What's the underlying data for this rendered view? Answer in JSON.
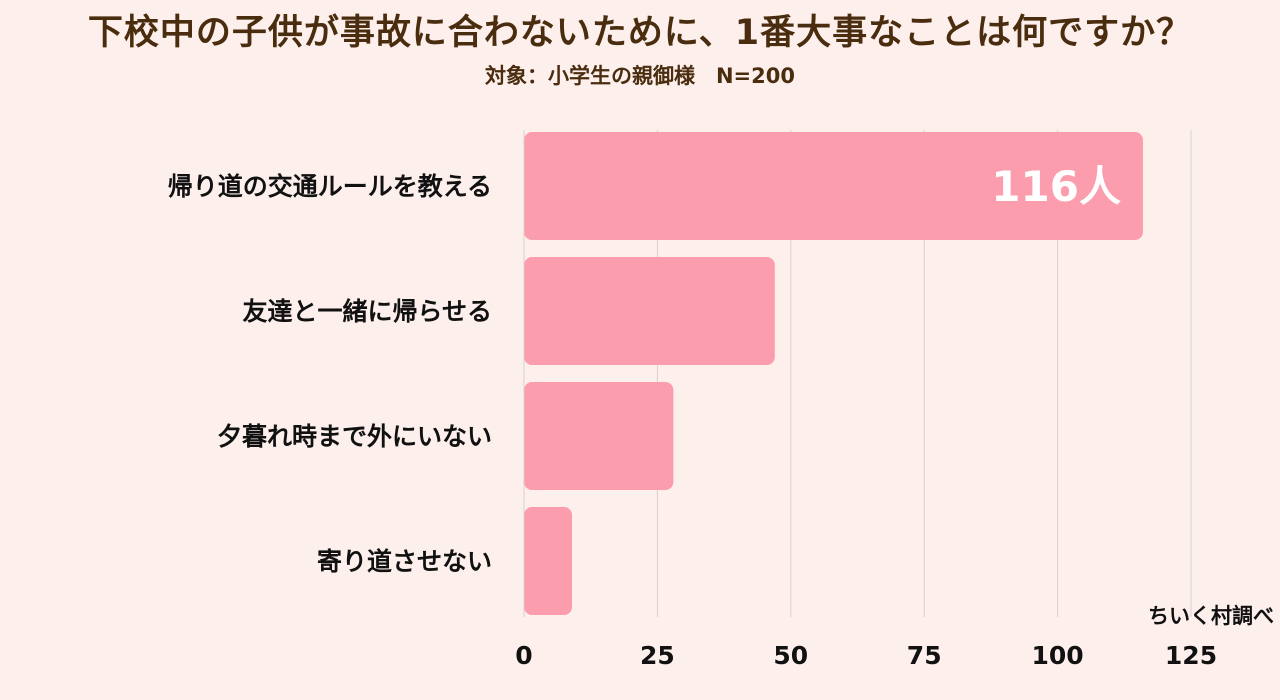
{
  "title": "下校中の子供が事故に合わないために、1番大事なことは何ですか？",
  "subtitle": "対象：小学生の親御様　N=200",
  "credit": "ちいく村調べ",
  "colors": {
    "bar": "#fc9dad",
    "background": "#fdf0ec",
    "grid": "#d8cfcf",
    "text": "#111111",
    "title": "#4a2c0f"
  },
  "chart_data": {
    "type": "bar",
    "orientation": "horizontal",
    "categories": [
      "帰り道の交通ルールを教える",
      "友達と一緒に帰らせる",
      "夕暮れ時まで外にいない",
      "寄り道させない"
    ],
    "values": [
      116,
      47,
      28,
      9
    ],
    "data_labels": [
      "116人",
      "",
      "",
      ""
    ],
    "xlim": [
      0,
      125
    ],
    "x_ticks": [
      "0",
      "25",
      "50",
      "75",
      "100",
      "125"
    ],
    "grid": true,
    "xlabel": "",
    "ylabel": ""
  }
}
